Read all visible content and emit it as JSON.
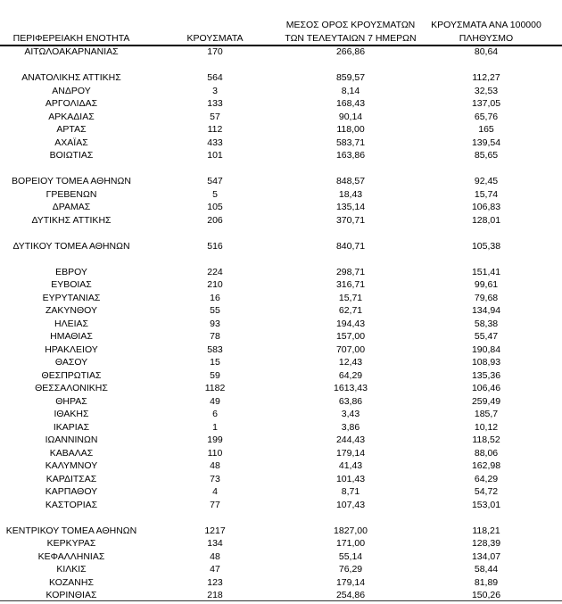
{
  "headers": {
    "region": "ΠΕΡΙΦΕΡΕΙΑΚΗ ΕΝΟΤΗΤΑ",
    "cases": "ΚΡΟΥΣΜΑΤΑ",
    "mean_line1": "ΜΕΣΟΣ ΟΡΟΣ ΚΡΟΥΣΜΑΤΩΝ",
    "mean_line2": "ΤΩΝ ΤΕΛΕΥΤΑΙΩΝ 7 ΗΜΕΡΩΝ",
    "per100k_line1": "ΚΡΟΥΣΜΑΤΑ ΑΝΑ 100000",
    "per100k_line2": "ΠΛΗΘΥΣΜΟ"
  },
  "rows": [
    [
      "ΑΙΤΩΛΟΑΚΑΡΝΑΝΙΑΣ",
      "170",
      "266,86",
      "80,64"
    ],
    null,
    [
      "ΑΝΑΤΟΛΙΚΗΣ ΑΤΤΙΚΗΣ",
      "564",
      "859,57",
      "112,27"
    ],
    [
      "ΑΝΔΡΟΥ",
      "3",
      "8,14",
      "32,53"
    ],
    [
      "ΑΡΓΟΛΙΔΑΣ",
      "133",
      "168,43",
      "137,05"
    ],
    [
      "ΑΡΚΑΔΙΑΣ",
      "57",
      "90,14",
      "65,76"
    ],
    [
      "ΑΡΤΑΣ",
      "112",
      "118,00",
      "165"
    ],
    [
      "ΑΧΑΪΑΣ",
      "433",
      "583,71",
      "139,54"
    ],
    [
      "ΒΟΙΩΤΙΑΣ",
      "101",
      "163,86",
      "85,65"
    ],
    null,
    [
      "ΒΟΡΕΙΟΥ ΤΟΜΕΑ ΑΘΗΝΩΝ",
      "547",
      "848,57",
      "92,45"
    ],
    [
      "ΓΡΕΒΕΝΩΝ",
      "5",
      "18,43",
      "15,74"
    ],
    [
      "ΔΡΑΜΑΣ",
      "105",
      "135,14",
      "106,83"
    ],
    [
      "ΔΥΤΙΚΗΣ ΑΤΤΙΚΗΣ",
      "206",
      "370,71",
      "128,01"
    ],
    null,
    [
      "ΔΥΤΙΚΟΥ ΤΟΜΕΑ ΑΘΗΝΩΝ",
      "516",
      "840,71",
      "105,38"
    ],
    null,
    [
      "ΕΒΡΟΥ",
      "224",
      "298,71",
      "151,41"
    ],
    [
      "ΕΥΒΟΙΑΣ",
      "210",
      "316,71",
      "99,61"
    ],
    [
      "ΕΥΡΥΤΑΝΙΑΣ",
      "16",
      "15,71",
      "79,68"
    ],
    [
      "ΖΑΚΥΝΘΟΥ",
      "55",
      "62,71",
      "134,94"
    ],
    [
      "ΗΛΕΙΑΣ",
      "93",
      "194,43",
      "58,38"
    ],
    [
      "ΗΜΑΘΙΑΣ",
      "78",
      "157,00",
      "55,47"
    ],
    [
      "ΗΡΑΚΛΕΙΟΥ",
      "583",
      "707,00",
      "190,84"
    ],
    [
      "ΘΑΣΟΥ",
      "15",
      "12,43",
      "108,93"
    ],
    [
      "ΘΕΣΠΡΩΤΙΑΣ",
      "59",
      "64,29",
      "135,36"
    ],
    [
      "ΘΕΣΣΑΛΟΝΙΚΗΣ",
      "1182",
      "1613,43",
      "106,46"
    ],
    [
      "ΘΗΡΑΣ",
      "49",
      "63,86",
      "259,49"
    ],
    [
      "ΙΘΑΚΗΣ",
      "6",
      "3,43",
      "185,7"
    ],
    [
      "ΙΚΑΡΙΑΣ",
      "1",
      "3,86",
      "10,12"
    ],
    [
      "ΙΩΑΝΝΙΝΩΝ",
      "199",
      "244,43",
      "118,52"
    ],
    [
      "ΚΑΒΑΛΑΣ",
      "110",
      "179,14",
      "88,06"
    ],
    [
      "ΚΑΛΥΜΝΟΥ",
      "48",
      "41,43",
      "162,98"
    ],
    [
      "ΚΑΡΔΙΤΣΑΣ",
      "73",
      "101,43",
      "64,29"
    ],
    [
      "ΚΑΡΠΑΘΟΥ",
      "4",
      "8,71",
      "54,72"
    ],
    [
      "ΚΑΣΤΟΡΙΑΣ",
      "77",
      "107,43",
      "153,01"
    ],
    null,
    [
      "ΚΕΝΤΡΙΚΟΥ ΤΟΜΕΑ ΑΘΗΝΩΝ",
      "1217",
      "1827,00",
      "118,21"
    ],
    [
      "ΚΕΡΚΥΡΑΣ",
      "134",
      "171,00",
      "128,39"
    ],
    [
      "ΚΕΦΑΛΛΗΝΙΑΣ",
      "48",
      "55,14",
      "134,07"
    ],
    [
      "ΚΙΛΚΙΣ",
      "47",
      "76,29",
      "58,44"
    ],
    [
      "ΚΟΖΑΝΗΣ",
      "123",
      "179,14",
      "81,89"
    ],
    [
      "ΚΟΡΙΝΘΙΑΣ",
      "218",
      "254,86",
      "150,26"
    ]
  ]
}
